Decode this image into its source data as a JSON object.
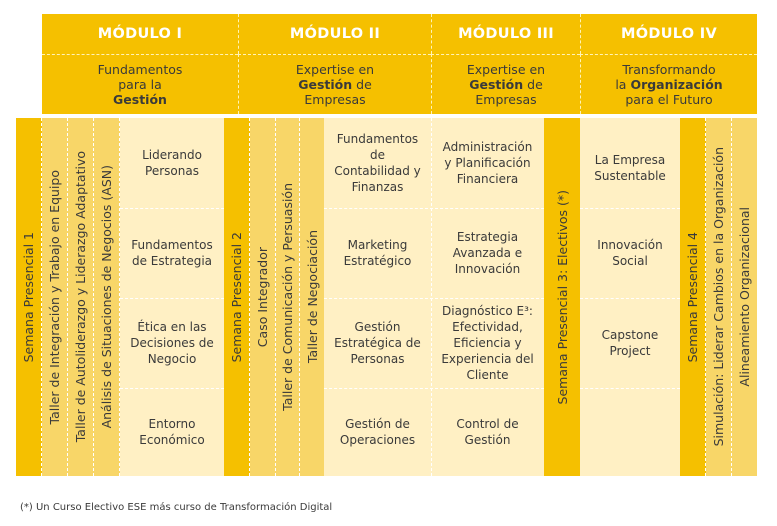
{
  "modules": [
    {
      "title": "MÓDULO I",
      "subtitle": [
        "Fundamentos",
        "para la"
      ],
      "bold": "Gestión",
      "after": ""
    },
    {
      "title": "MÓDULO II",
      "subtitle": [
        "Expertise en"
      ],
      "bold": "Gestión",
      "after": "de",
      "tail": "Empresas"
    },
    {
      "title": "MÓDULO III",
      "subtitle": [
        "Expertise en"
      ],
      "bold": "Gestión",
      "after": "de",
      "tail": "Empresas"
    },
    {
      "title": "MÓDULO IV",
      "subtitle": [
        "Transformando"
      ],
      "pre": "la",
      "bold": "Organización",
      "tail": "para el Futuro"
    }
  ],
  "vertical": {
    "semana1": "Semana Presencial 1",
    "taller_integracion": "Taller de Integración y Trabajo en Equipo",
    "taller_autoliderazgo": "Taller de Autoliderazgo y Liderazgo Adaptativo",
    "asn": "Análisis de Situaciones de Negocios (ASN)",
    "semana2": "Semana Presencial 2",
    "caso": "Caso Integrador",
    "taller_comunicacion": "Taller de Comunicación y Persuasión",
    "taller_negociacion": "Taller de Negociación",
    "semana3": "Semana Presencial 3: Electivos (*)",
    "semana4": "Semana Presencial 4",
    "simulacion": "Simulación: Liderar Cambios en la Organización",
    "alineamiento": "Alineamiento Organizacional"
  },
  "col1": [
    "Liderando\nPersonas",
    "Fundamentos\nde Estrategia",
    "Ética en las\nDecisiones de\nNegocio",
    "Entorno\nEconómico"
  ],
  "col2": [
    "Fundamentos\nde\nContabilidad y\nFinanzas",
    "Marketing\nEstratégico",
    "Gestión\nEstratégica de\nPersonas",
    "Gestión de\nOperaciones"
  ],
  "col3": [
    "Administración\ny Planificación\nFinanciera",
    "Estrategia\nAvanzada e\nInnovación",
    "Diagnóstico E³:\nEfectividad,\nEficiencia y\nExperiencia del\nCliente",
    "Control de\nGestión"
  ],
  "col4": [
    "La Empresa\nSustentable",
    "Innovación\nSocial",
    "Capstone\nProject",
    ""
  ],
  "footnote": "(*) Un Curso Electivo ESE más curso de Transformación Digital"
}
